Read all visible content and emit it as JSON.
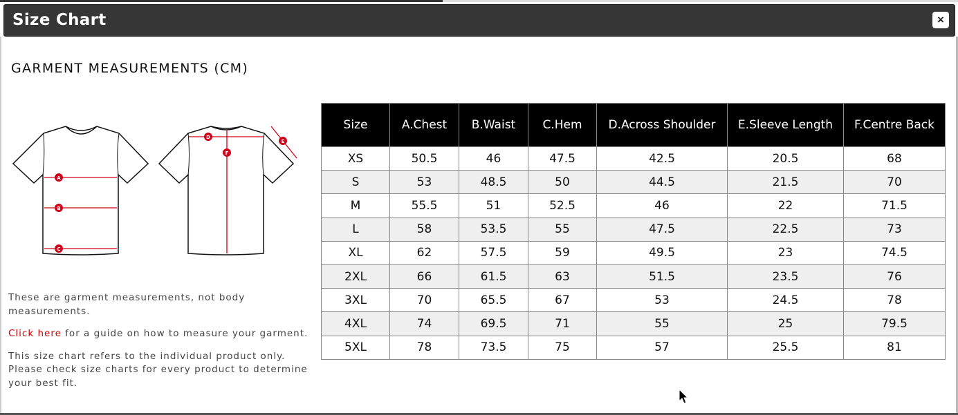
{
  "dialog": {
    "title": "Size Chart",
    "close_label": "×"
  },
  "heading": "GARMENT MEASUREMENTS (CM)",
  "diagram_labels": [
    "A",
    "B",
    "C",
    "D",
    "E",
    "F"
  ],
  "notes": {
    "p1": "These are garment measurements, not body measurements.",
    "link": "Click here",
    "p2_rest": " for a guide on how to measure your garment.",
    "p3": "This size chart refers to the individual product only. Please check size charts for every product to determine your best fit."
  },
  "table": {
    "headers": [
      "Size",
      "A.Chest",
      "B.Waist",
      "C.Hem",
      "D.Across Shoulder",
      "E.Sleeve Length",
      "F.Centre Back"
    ],
    "rows": [
      [
        "XS",
        "50.5",
        "46",
        "47.5",
        "42.5",
        "20.5",
        "68"
      ],
      [
        "S",
        "53",
        "48.5",
        "50",
        "44.5",
        "21.5",
        "70"
      ],
      [
        "M",
        "55.5",
        "51",
        "52.5",
        "46",
        "22",
        "71.5"
      ],
      [
        "L",
        "58",
        "53.5",
        "55",
        "47.5",
        "22.5",
        "73"
      ],
      [
        "XL",
        "62",
        "57.5",
        "59",
        "49.5",
        "23",
        "74.5"
      ],
      [
        "2XL",
        "66",
        "61.5",
        "63",
        "51.5",
        "23.5",
        "76"
      ],
      [
        "3XL",
        "70",
        "65.5",
        "67",
        "53",
        "24.5",
        "78"
      ],
      [
        "4XL",
        "74",
        "69.5",
        "71",
        "55",
        "25",
        "79.5"
      ],
      [
        "5XL",
        "78",
        "73.5",
        "75",
        "57",
        "25.5",
        "81"
      ]
    ]
  },
  "colors": {
    "title_bar": "#363637",
    "link": "#cc0000",
    "measure_lines": "#d0021b"
  }
}
